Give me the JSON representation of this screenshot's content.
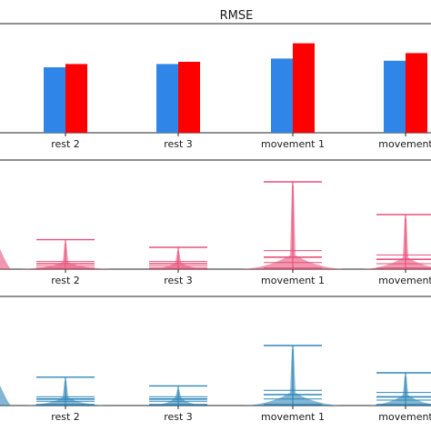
{
  "chart_data": [
    {
      "type": "bar",
      "title": "RMSE",
      "categories": [
        "rest 2",
        "rest 3",
        "movement 1",
        "movement"
      ],
      "series": [
        {
          "color": "#2f86e8",
          "values": [
            0.6,
            0.63,
            0.68,
            0.66
          ]
        },
        {
          "color": "#ff0000",
          "values": [
            0.63,
            0.65,
            0.82,
            0.73
          ]
        }
      ],
      "ylim": [
        0,
        1
      ]
    },
    {
      "type": "violin",
      "categories": [
        "rest 2",
        "rest 3",
        "movement 1",
        "movement"
      ],
      "color": "#e8517a",
      "violins": [
        {
          "min": 0.0,
          "q1": 0.03,
          "median": 0.05,
          "q3": 0.07,
          "max": 0.27,
          "width": 0.85
        },
        {
          "min": 0.0,
          "q1": 0.03,
          "median": 0.05,
          "q3": 0.07,
          "max": 0.2,
          "width": 0.55
        },
        {
          "min": 0.0,
          "q1": 0.06,
          "median": 0.11,
          "q3": 0.17,
          "max": 0.8,
          "width": 0.95
        },
        {
          "min": 0.0,
          "q1": 0.05,
          "median": 0.09,
          "q3": 0.13,
          "max": 0.5,
          "width": 0.8
        }
      ],
      "ylim": [
        0,
        1
      ]
    },
    {
      "type": "violin",
      "categories": [
        "rest 2",
        "rest 3",
        "movement 1",
        "movement"
      ],
      "color": "#2f86b8",
      "violins": [
        {
          "min": 0.0,
          "q1": 0.04,
          "median": 0.06,
          "q3": 0.08,
          "max": 0.26,
          "width": 0.75
        },
        {
          "min": 0.0,
          "q1": 0.04,
          "median": 0.06,
          "q3": 0.08,
          "max": 0.18,
          "width": 0.5
        },
        {
          "min": 0.0,
          "q1": 0.06,
          "median": 0.1,
          "q3": 0.14,
          "max": 0.55,
          "width": 0.9
        },
        {
          "min": 0.0,
          "q1": 0.05,
          "median": 0.08,
          "q3": 0.12,
          "max": 0.3,
          "width": 0.7
        }
      ],
      "ylim": [
        0,
        1
      ]
    }
  ]
}
